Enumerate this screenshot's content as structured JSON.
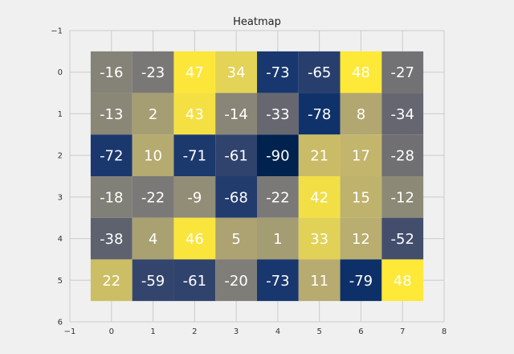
{
  "chart_data": {
    "type": "heatmap",
    "title": "Heatmap",
    "xlabel": "",
    "ylabel": "",
    "colormap": "cividis",
    "grid": true,
    "xlim": [
      -1,
      8
    ],
    "ylim": [
      6,
      -1
    ],
    "xticks": [
      "−1",
      "0",
      "1",
      "2",
      "3",
      "4",
      "5",
      "6",
      "7",
      "8"
    ],
    "yticks": [
      "−1",
      "0",
      "1",
      "2",
      "3",
      "4",
      "5",
      "6"
    ],
    "values": [
      [
        -16,
        -23,
        47,
        34,
        -73,
        -65,
        48,
        -27
      ],
      [
        -13,
        2,
        43,
        -14,
        -33,
        -78,
        8,
        -34
      ],
      [
        -72,
        10,
        -71,
        -61,
        -90,
        21,
        17,
        -28
      ],
      [
        -18,
        -22,
        -9,
        -68,
        -22,
        42,
        15,
        -12
      ],
      [
        -38,
        4,
        46,
        5,
        1,
        33,
        12,
        -52
      ],
      [
        22,
        -59,
        -61,
        -20,
        -73,
        11,
        -79,
        48
      ]
    ],
    "labels": [
      [
        "-16",
        "-23",
        "47",
        "34",
        "-73",
        "-65",
        "48",
        "-27"
      ],
      [
        "-13",
        "2",
        "43",
        "-14",
        "-33",
        "-78",
        "8",
        "-34"
      ],
      [
        "-72",
        "10",
        "-71",
        "-61",
        "-90",
        "21",
        "17",
        "-28"
      ],
      [
        "-18",
        "-22",
        "-9",
        "-68",
        "-22",
        "42",
        "15",
        "-12"
      ],
      [
        "-38",
        "4",
        "46",
        "5",
        "1",
        "33",
        "12",
        "-52"
      ],
      [
        "22",
        "-59",
        "-61",
        "-20",
        "-73",
        "11",
        "-79",
        "48"
      ]
    ],
    "vmin": -90,
    "vmax": 48
  }
}
